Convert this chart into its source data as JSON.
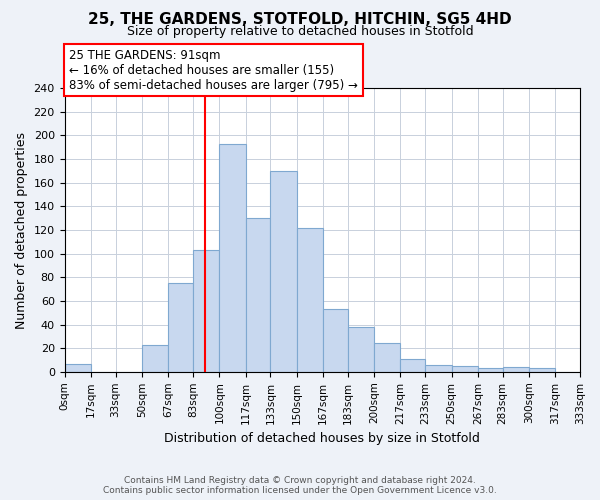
{
  "title": "25, THE GARDENS, STOTFOLD, HITCHIN, SG5 4HD",
  "subtitle": "Size of property relative to detached houses in Stotfold",
  "xlabel": "Distribution of detached houses by size in Stotfold",
  "ylabel": "Number of detached properties",
  "bar_edges": [
    0,
    17,
    33,
    50,
    67,
    83,
    100,
    117,
    133,
    150,
    167,
    183,
    200,
    217,
    233,
    250,
    267,
    283,
    300,
    317,
    333
  ],
  "bar_heights": [
    7,
    0,
    0,
    23,
    75,
    103,
    193,
    130,
    170,
    122,
    53,
    38,
    24,
    11,
    6,
    5,
    3,
    4,
    3,
    0
  ],
  "bar_color": "#c8d8ef",
  "bar_edgecolor": "#7fa8d0",
  "property_line_x": 91,
  "property_line_color": "red",
  "annotation_title": "25 THE GARDENS: 91sqm",
  "annotation_line1": "← 16% of detached houses are smaller (155)",
  "annotation_line2": "83% of semi-detached houses are larger (795) →",
  "annotation_box_color": "red",
  "annotation_fill": "white",
  "ylim": [
    0,
    240
  ],
  "xlim": [
    0,
    333
  ],
  "tick_labels": [
    "0sqm",
    "17sqm",
    "33sqm",
    "50sqm",
    "67sqm",
    "83sqm",
    "100sqm",
    "117sqm",
    "133sqm",
    "150sqm",
    "167sqm",
    "183sqm",
    "200sqm",
    "217sqm",
    "233sqm",
    "250sqm",
    "267sqm",
    "283sqm",
    "300sqm",
    "317sqm",
    "333sqm"
  ],
  "yticks": [
    0,
    20,
    40,
    60,
    80,
    100,
    120,
    140,
    160,
    180,
    200,
    220,
    240
  ],
  "footer_line1": "Contains HM Land Registry data © Crown copyright and database right 2024.",
  "footer_line2": "Contains public sector information licensed under the Open Government Licence v3.0.",
  "background_color": "#eef2f8",
  "plot_bg_color": "#ffffff"
}
